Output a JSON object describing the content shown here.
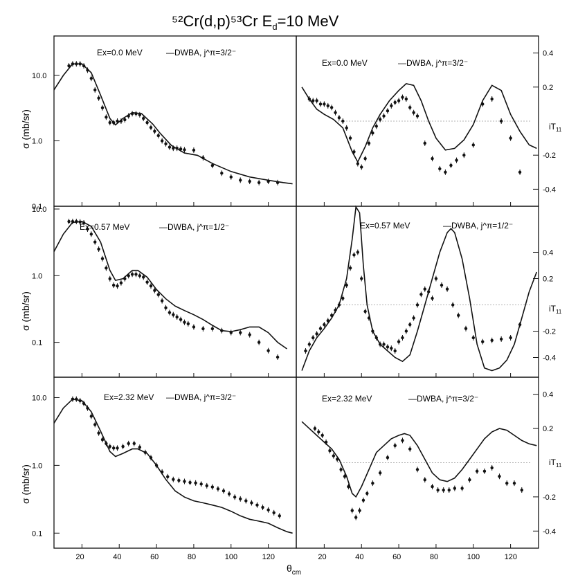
{
  "figure": {
    "title": "⁵²Cr(d,p)⁵³Cr     E",
    "title_sub": "d",
    "title_tail": "=10 MeV",
    "xlabel": "θ",
    "xlabel_sub": "cm",
    "ylabel_cs": "σ (mb/sr)",
    "ylabel_ay": "iT",
    "ylabel_ay_sub": "11",
    "x_ticks": [
      "20",
      "40",
      "60",
      "80",
      "100",
      "120"
    ],
    "x_tick_values": [
      20,
      40,
      60,
      80,
      100,
      120
    ],
    "cs_ticks": [
      "10.0",
      "1.0",
      "0.1"
    ],
    "cs_tick_values": [
      10,
      1,
      0.1
    ],
    "ay_ticks": [
      "0.4",
      "0.2",
      "-0.2",
      "-0.4"
    ],
    "ay_tick_values": [
      0.4,
      0.2,
      -0.2,
      -0.4
    ]
  },
  "chart_data": [
    {
      "type": "line",
      "panel": "cross-section",
      "state": "Ex=0.0",
      "label": "E<sub>x</sub>=0.0 MeV",
      "label_text": "Ex=0.0 MeV",
      "curve_label": "—DWBA, j^π=3/2⁻",
      "xlim": [
        5,
        135
      ],
      "ylim": [
        0.1,
        40
      ],
      "yscale": "log",
      "dwba": {
        "x": [
          5,
          10,
          15,
          20,
          25,
          30,
          35,
          38,
          42,
          47,
          52,
          58,
          62,
          68,
          75,
          82,
          90,
          100,
          110,
          120,
          128,
          133
        ],
        "y": [
          6,
          10,
          15,
          15,
          11,
          5,
          2.2,
          1.75,
          2.2,
          2.7,
          2.6,
          1.8,
          1.3,
          0.85,
          0.65,
          0.6,
          0.45,
          0.34,
          0.28,
          0.25,
          0.23,
          0.22
        ]
      },
      "points": {
        "x": [
          13,
          15,
          17,
          19,
          21,
          23,
          25,
          27,
          29,
          31,
          33,
          35,
          37,
          39,
          41,
          43,
          45,
          47,
          49,
          51,
          53,
          55,
          57,
          59,
          61,
          63,
          65,
          67,
          69,
          71,
          73,
          75,
          80,
          85,
          90,
          95,
          100,
          105,
          110,
          115,
          120,
          125
        ],
        "y": [
          14,
          15,
          15,
          15,
          14,
          12,
          9,
          6,
          4.5,
          3.2,
          2.3,
          1.9,
          1.9,
          2,
          2,
          2.1,
          2.4,
          2.6,
          2.6,
          2.5,
          2.2,
          1.9,
          1.6,
          1.4,
          1.2,
          1,
          0.9,
          0.8,
          0.77,
          0.77,
          0.75,
          0.73,
          0.72,
          0.55,
          0.42,
          0.32,
          0.28,
          0.25,
          0.24,
          0.23,
          0.24,
          0.23
        ]
      }
    },
    {
      "type": "line",
      "panel": "analyzing-power",
      "state": "Ex=0.0",
      "label_text": "Ex=0.0 MeV",
      "curve_label": "—DWBA, j^π=3/2⁻",
      "xlim": [
        5,
        135
      ],
      "ylim": [
        -0.5,
        0.5
      ],
      "dwba": {
        "x": [
          8,
          12,
          16,
          20,
          25,
          30,
          35,
          38,
          42,
          46,
          50,
          55,
          60,
          64,
          68,
          72,
          76,
          80,
          85,
          90,
          95,
          100,
          105,
          110,
          115,
          120,
          125,
          130,
          134
        ],
        "y": [
          0.2,
          0.13,
          0.07,
          0.04,
          0.01,
          -0.04,
          -0.18,
          -0.24,
          -0.15,
          -0.04,
          0.04,
          0.12,
          0.18,
          0.22,
          0.21,
          0.12,
          0.0,
          -0.1,
          -0.17,
          -0.16,
          -0.11,
          -0.02,
          0.12,
          0.21,
          0.18,
          0.04,
          -0.06,
          -0.14,
          -0.16
        ]
      },
      "points": {
        "x": [
          12,
          14,
          16,
          18,
          20,
          22,
          24,
          26,
          28,
          30,
          32,
          34,
          36,
          38,
          40,
          42,
          44,
          46,
          48,
          50,
          52,
          54,
          56,
          58,
          60,
          62,
          64,
          66,
          68,
          70,
          74,
          78,
          82,
          85,
          88,
          91,
          95,
          100,
          105,
          110,
          115,
          120,
          125
        ],
        "y": [
          0.13,
          0.12,
          0.12,
          0.1,
          0.1,
          0.09,
          0.08,
          0.05,
          0.02,
          0.0,
          -0.04,
          -0.1,
          -0.18,
          -0.25,
          -0.27,
          -0.22,
          -0.13,
          -0.07,
          -0.03,
          0.01,
          0.03,
          0.06,
          0.09,
          0.11,
          0.12,
          0.14,
          0.13,
          0.08,
          0.05,
          0.03,
          -0.13,
          -0.22,
          -0.28,
          -0.3,
          -0.26,
          -0.23,
          -0.2,
          -0.14,
          0.1,
          0.13,
          0.0,
          -0.1,
          -0.3
        ]
      },
      "reference_line": 0.0
    },
    {
      "type": "line",
      "panel": "cross-section",
      "state": "Ex=0.57",
      "label_text": "Ex=0.57 MeV",
      "curve_label": "—DWBA, j^π=1/2⁻",
      "xlim": [
        5,
        135
      ],
      "ylim": [
        0.03,
        11
      ],
      "yscale": "log",
      "dwba": {
        "x": [
          5,
          10,
          15,
          20,
          25,
          30,
          35,
          38,
          42,
          47,
          50,
          55,
          60,
          65,
          70,
          75,
          80,
          85,
          90,
          95,
          100,
          105,
          110,
          115,
          120,
          125,
          130
        ],
        "y": [
          2.3,
          4.2,
          6.3,
          6.5,
          5.5,
          3.2,
          1.2,
          0.85,
          0.9,
          1.2,
          1.2,
          0.95,
          0.62,
          0.45,
          0.35,
          0.3,
          0.26,
          0.22,
          0.18,
          0.15,
          0.145,
          0.155,
          0.17,
          0.17,
          0.14,
          0.1,
          0.08
        ]
      },
      "points": {
        "x": [
          13,
          15,
          17,
          19,
          21,
          23,
          25,
          27,
          29,
          31,
          33,
          35,
          37,
          39,
          41,
          43,
          45,
          47,
          49,
          51,
          53,
          55,
          57,
          59,
          61,
          63,
          65,
          67,
          69,
          71,
          73,
          75,
          77,
          80,
          85,
          90,
          95,
          100,
          105,
          110,
          115,
          120,
          125
        ],
        "y": [
          6.5,
          6.5,
          6.5,
          6.4,
          6.2,
          5,
          4.2,
          3.2,
          2.5,
          1.8,
          1.3,
          0.9,
          0.72,
          0.7,
          0.78,
          0.9,
          1,
          1.05,
          1.05,
          1,
          0.95,
          0.8,
          0.7,
          0.6,
          0.52,
          0.42,
          0.33,
          0.28,
          0.26,
          0.24,
          0.22,
          0.2,
          0.19,
          0.17,
          0.16,
          0.16,
          0.15,
          0.14,
          0.14,
          0.13,
          0.1,
          0.075,
          0.06
        ]
      }
    },
    {
      "type": "line",
      "panel": "analyzing-power",
      "state": "Ex=0.57",
      "label_text": "Ex=0.57 MeV",
      "curve_label": "—DWBA, j^π=1/2⁻",
      "xlim": [
        5,
        135
      ],
      "ylim": [
        -0.55,
        0.75
      ],
      "dwba": {
        "x": [
          8,
          12,
          16,
          20,
          24,
          28,
          32,
          35,
          37,
          39,
          41,
          43,
          46,
          50,
          54,
          58,
          62,
          66,
          70,
          74,
          78,
          82,
          86,
          88,
          90,
          94,
          98,
          102,
          106,
          110,
          114,
          118,
          122,
          126,
          130,
          134
        ],
        "y": [
          -0.5,
          -0.35,
          -0.25,
          -0.18,
          -0.1,
          0.0,
          0.2,
          0.5,
          0.75,
          0.7,
          0.3,
          0.0,
          -0.2,
          -0.3,
          -0.35,
          -0.4,
          -0.43,
          -0.38,
          -0.2,
          0.0,
          0.2,
          0.4,
          0.55,
          0.58,
          0.55,
          0.35,
          0.05,
          -0.3,
          -0.48,
          -0.5,
          -0.48,
          -0.42,
          -0.3,
          -0.1,
          0.1,
          0.25
        ]
      },
      "points": {
        "x": [
          10,
          12,
          14,
          16,
          18,
          20,
          22,
          24,
          26,
          28,
          30,
          32,
          34,
          36,
          38,
          40,
          42,
          44,
          46,
          48,
          50,
          52,
          54,
          56,
          58,
          60,
          62,
          64,
          66,
          68,
          70,
          72,
          74,
          76,
          78,
          80,
          83,
          86,
          89,
          92,
          96,
          100,
          105,
          110,
          115,
          120,
          125
        ],
        "y": [
          -0.35,
          -0.3,
          -0.25,
          -0.22,
          -0.18,
          -0.15,
          -0.12,
          -0.08,
          -0.04,
          0.0,
          0.05,
          0.15,
          0.28,
          0.38,
          0.4,
          0.2,
          -0.05,
          -0.1,
          -0.2,
          -0.25,
          -0.3,
          -0.3,
          -0.32,
          -0.33,
          -0.35,
          -0.28,
          -0.25,
          -0.2,
          -0.15,
          -0.1,
          0.0,
          0.08,
          0.12,
          0.1,
          0.05,
          0.2,
          0.15,
          0.12,
          0.0,
          -0.08,
          -0.18,
          -0.25,
          -0.28,
          -0.27,
          -0.26,
          -0.25,
          -0.15
        ]
      },
      "reference_line": 0.0
    },
    {
      "type": "line",
      "panel": "cross-section",
      "state": "Ex=2.32",
      "label_text": "Ex=2.32 MeV",
      "curve_label": "—DWBA, j^π=3/2⁻",
      "xlim": [
        5,
        135
      ],
      "ylim": [
        0.06,
        20
      ],
      "yscale": "log",
      "dwba": {
        "x": [
          5,
          10,
          15,
          20,
          25,
          30,
          35,
          38,
          42,
          47,
          50,
          55,
          60,
          65,
          70,
          75,
          80,
          85,
          90,
          95,
          100,
          105,
          110,
          115,
          120,
          125,
          130,
          133
        ],
        "y": [
          4.2,
          7,
          9.5,
          9,
          6.2,
          3.2,
          1.6,
          1.35,
          1.5,
          1.75,
          1.75,
          1.5,
          1.0,
          0.62,
          0.42,
          0.34,
          0.3,
          0.28,
          0.26,
          0.24,
          0.21,
          0.18,
          0.16,
          0.15,
          0.14,
          0.12,
          0.105,
          0.1
        ]
      },
      "points": {
        "x": [
          15,
          17,
          19,
          21,
          23,
          25,
          27,
          29,
          31,
          33,
          35,
          37,
          39,
          42,
          45,
          48,
          51,
          54,
          57,
          60,
          63,
          66,
          69,
          72,
          75,
          78,
          81,
          84,
          87,
          90,
          93,
          96,
          99,
          102,
          105,
          108,
          111,
          114,
          117,
          120,
          123,
          126
        ],
        "y": [
          9.5,
          9.5,
          9,
          8.2,
          7,
          5.3,
          4,
          3,
          2.4,
          2.1,
          1.9,
          1.8,
          1.8,
          1.9,
          2.1,
          2.1,
          1.85,
          1.55,
          1.3,
          1.0,
          0.8,
          0.68,
          0.62,
          0.6,
          0.58,
          0.56,
          0.55,
          0.53,
          0.5,
          0.48,
          0.45,
          0.42,
          0.38,
          0.34,
          0.32,
          0.3,
          0.28,
          0.26,
          0.24,
          0.22,
          0.2,
          0.18
        ]
      }
    },
    {
      "type": "line",
      "panel": "analyzing-power",
      "state": "Ex=2.32",
      "label_text": "Ex=2.32 MeV",
      "curve_label": "—DWBA, j^π=3/2⁻",
      "xlim": [
        5,
        135
      ],
      "ylim": [
        -0.5,
        0.5
      ],
      "dwba": {
        "x": [
          8,
          12,
          16,
          20,
          24,
          28,
          32,
          35,
          37,
          40,
          44,
          48,
          52,
          56,
          60,
          63,
          66,
          70,
          74,
          78,
          82,
          86,
          90,
          94,
          98,
          102,
          106,
          110,
          114,
          118,
          122,
          126,
          130,
          134
        ],
        "y": [
          0.24,
          0.2,
          0.16,
          0.12,
          0.08,
          0.02,
          -0.08,
          -0.18,
          -0.2,
          -0.14,
          -0.04,
          0.06,
          0.1,
          0.14,
          0.16,
          0.17,
          0.16,
          0.1,
          0.02,
          -0.06,
          -0.1,
          -0.11,
          -0.09,
          -0.04,
          0.02,
          0.08,
          0.14,
          0.18,
          0.2,
          0.19,
          0.16,
          0.13,
          0.11,
          0.1
        ]
      },
      "points": {
        "x": [
          15,
          17,
          19,
          21,
          23,
          25,
          27,
          29,
          31,
          33,
          35,
          37,
          39,
          41,
          43,
          46,
          50,
          54,
          58,
          62,
          66,
          70,
          74,
          78,
          81,
          84,
          87,
          90,
          94,
          98,
          102,
          106,
          110,
          114,
          118,
          122,
          126
        ],
        "y": [
          0.2,
          0.18,
          0.16,
          0.12,
          0.07,
          0.04,
          0.02,
          -0.04,
          -0.08,
          -0.14,
          -0.28,
          -0.32,
          -0.28,
          -0.22,
          -0.18,
          -0.12,
          -0.06,
          0.03,
          0.1,
          0.13,
          0.08,
          -0.04,
          -0.1,
          -0.14,
          -0.16,
          -0.16,
          -0.16,
          -0.15,
          -0.15,
          -0.1,
          -0.05,
          -0.05,
          -0.03,
          -0.08,
          -0.12,
          -0.12,
          -0.16
        ]
      },
      "reference_line": 0.0
    }
  ]
}
